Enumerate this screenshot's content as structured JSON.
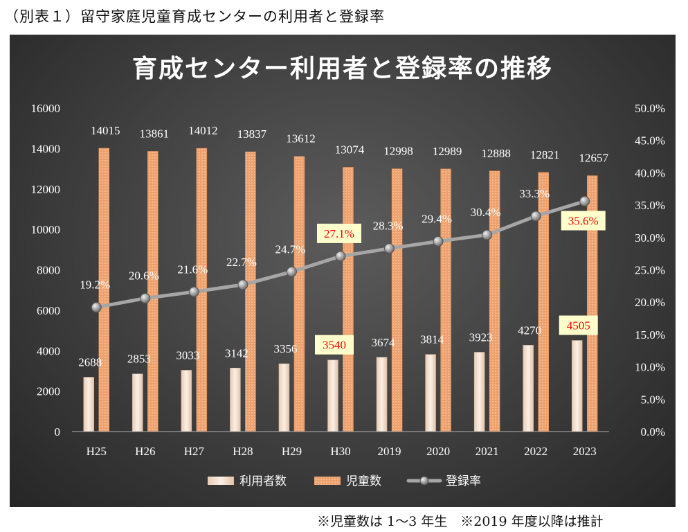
{
  "caption": "（別表１）留守家庭児童育成センターの利用者と登録率",
  "footnote": "※児童数は 1〜3 年生　※2019 年度以降は推計",
  "colors": {
    "users_bar": "#f4e2d4",
    "children_bar": "#f0a574",
    "rate_line": "#a6a6a6",
    "highlight_bg": "#ffffcc",
    "highlight_text": "#ff0000",
    "label_text": "#ffffff"
  },
  "chart_data": {
    "type": "bar",
    "title": "育成センター利用者と登録率の推移",
    "categories": [
      "H25",
      "H26",
      "H27",
      "H28",
      "H29",
      "H30",
      "2019",
      "2020",
      "2021",
      "2022",
      "2023"
    ],
    "series": [
      {
        "name": "利用者数",
        "type": "bar",
        "axis": "left",
        "values": [
          2688,
          2853,
          3033,
          3142,
          3356,
          3540,
          3674,
          3814,
          3923,
          4270,
          4505
        ]
      },
      {
        "name": "児童数",
        "type": "bar",
        "axis": "left",
        "values": [
          14015,
          13861,
          14012,
          13837,
          13612,
          13074,
          12998,
          12989,
          12888,
          12821,
          12657
        ]
      },
      {
        "name": "登録率",
        "type": "line",
        "axis": "right",
        "values": [
          19.2,
          20.6,
          21.6,
          22.7,
          24.7,
          27.1,
          28.3,
          29.4,
          30.4,
          33.3,
          35.6
        ],
        "labels": [
          "19.2%",
          "20.6%",
          "21.6%",
          "22.7%",
          "24.7%",
          "27.1%",
          "28.3%",
          "29.4%",
          "30.4%",
          "33.3%",
          "35.6%"
        ]
      }
    ],
    "left_axis": {
      "ylim": [
        0,
        16000
      ],
      "ticks": [
        "0",
        "2000",
        "4000",
        "6000",
        "8000",
        "10000",
        "12000",
        "14000",
        "16000"
      ]
    },
    "right_axis": {
      "ylim": [
        0,
        50
      ],
      "ticks": [
        "0.0%",
        "5.0%",
        "10.0%",
        "15.0%",
        "20.0%",
        "25.0%",
        "30.0%",
        "35.0%",
        "40.0%",
        "45.0%",
        "50.0%"
      ]
    },
    "highlighted": {
      "users": [
        5,
        10
      ],
      "rate": [
        5,
        10
      ]
    },
    "legend_position": "bottom",
    "grid": false
  }
}
